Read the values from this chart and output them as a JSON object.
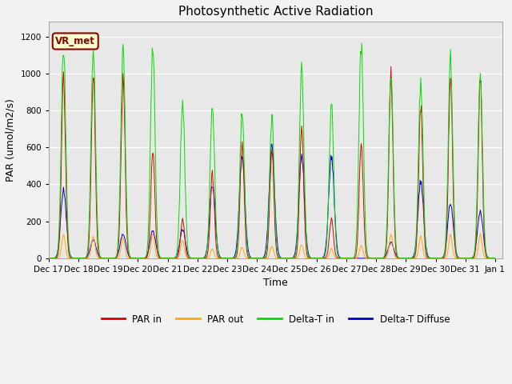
{
  "title": "Photosynthetic Active Radiation",
  "ylabel": "PAR (umol/m2/s)",
  "xlabel": "Time",
  "yticks": [
    0,
    200,
    400,
    600,
    800,
    1000,
    1200
  ],
  "ylim": [
    0,
    1280
  ],
  "legend_labels": [
    "PAR in",
    "PAR out",
    "Delta-T in",
    "Delta-T Diffuse"
  ],
  "legend_colors": [
    "#dd0000",
    "#ffaa00",
    "#00dd00",
    "#0000cc"
  ],
  "background_color": "#e8e8e8",
  "grid_color": "#ffffff",
  "station_label": "VR_met",
  "station_box_facecolor": "#ffffcc",
  "station_box_edgecolor": "#880000",
  "fig_facecolor": "#f2f2f2",
  "xtick_labels": [
    "Dec 17",
    "Dec 18",
    "Dec 19",
    "Dec 20",
    "Dec 21",
    "Dec 22",
    "Dec 23",
    "Dec 24",
    "Dec 25",
    "Dec 26",
    "Dec 27",
    "Dec 28",
    "Dec 29",
    "Dec 30",
    "Dec 31",
    "Jan 1"
  ],
  "day_peaks_green": {
    "17": 1150,
    "18": 1130,
    "19": 1110,
    "20": 1140,
    "21": 850,
    "22": 850,
    "23": 800,
    "24": 760,
    "25": 1030,
    "26": 830,
    "27": 1160,
    "28": 980,
    "29": 960,
    "30": 1080,
    "31": 980
  },
  "day_peaks_red": {
    "17": 980,
    "18": 990,
    "19": 980,
    "20": 590,
    "21": 210,
    "22": 460,
    "23": 640,
    "24": 600,
    "25": 720,
    "26": 210,
    "27": 620,
    "28": 990,
    "29": 830,
    "30": 970,
    "31": 970
  },
  "day_peaks_orange": {
    "17": 130,
    "18": 120,
    "19": 110,
    "20": 130,
    "21": 100,
    "22": 50,
    "23": 60,
    "24": 65,
    "25": 75,
    "26": 50,
    "27": 70,
    "28": 130,
    "29": 120,
    "30": 130,
    "31": 130
  },
  "day_peaks_blue": {
    "17": 370,
    "18": 100,
    "19": 130,
    "20": 150,
    "21": 155,
    "22": 400,
    "23": 560,
    "24": 600,
    "25": 550,
    "26": 550,
    "27": 0,
    "28": 85,
    "29": 420,
    "30": 300,
    "31": 250
  }
}
